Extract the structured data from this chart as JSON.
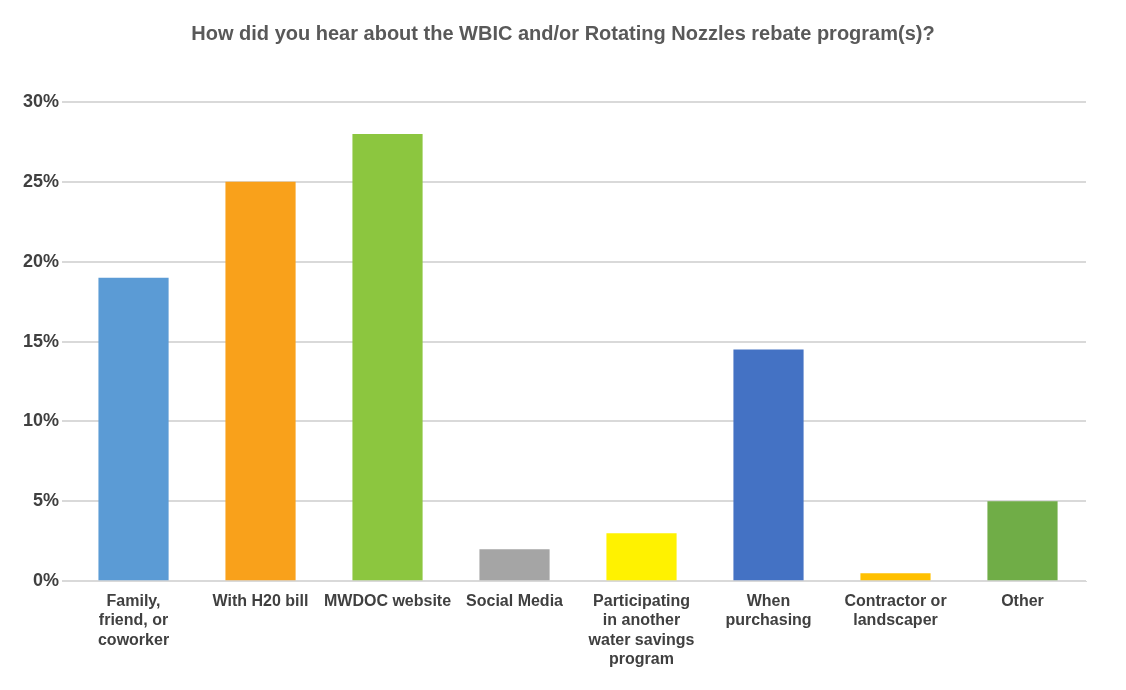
{
  "chart_data": {
    "type": "bar",
    "title": "How did you hear about the WBIC and/or Rotating Nozzles rebate program(s)?",
    "categories": [
      "Family, friend, or coworker",
      "With H20 bill",
      "MWDOC website",
      "Social Media",
      "Participating in another water savings program",
      "When purchasing",
      "Contractor or landscaper",
      "Other"
    ],
    "values": [
      19,
      25,
      28,
      2,
      3,
      14.5,
      0.5,
      5
    ],
    "colors": [
      "#5b9bd5",
      "#f9a11b",
      "#8cc63f",
      "#a5a5a5",
      "#fff200",
      "#4472c4",
      "#ffc000",
      "#70ad47"
    ],
    "ylim": [
      0,
      30
    ],
    "yticks": [
      {
        "value": 0,
        "label": "0%"
      },
      {
        "value": 5,
        "label": "5%"
      },
      {
        "value": 10,
        "label": "10%"
      },
      {
        "value": 15,
        "label": "15%"
      },
      {
        "value": 20,
        "label": "20%"
      },
      {
        "value": 25,
        "label": "25%"
      },
      {
        "value": 30,
        "label": "30%"
      }
    ],
    "grid": "y",
    "legend": false
  }
}
